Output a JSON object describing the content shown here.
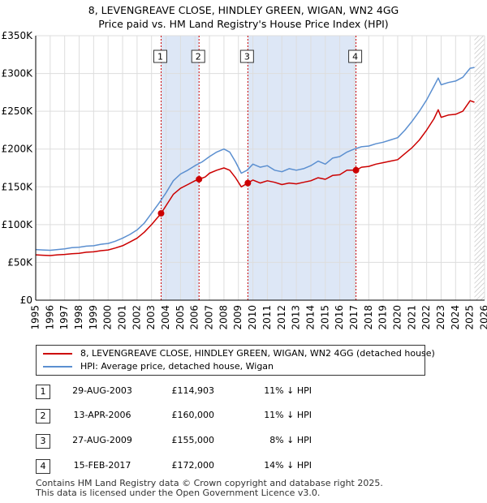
{
  "title": {
    "line1": "8, LEVENGREAVE CLOSE, HINDLEY GREEN, WIGAN, WN2 4GG",
    "line2": "Price paid vs. HM Land Registry's House Price Index (HPI)"
  },
  "colors": {
    "property": "#cc0000",
    "hpi": "#5b8fd0",
    "shade": "#dde7f6",
    "hatch": "#bbbbbb",
    "marker_line": "#cc0000",
    "grid": "#dddddd"
  },
  "chart_data": {
    "type": "line",
    "xlim": [
      1995,
      2026
    ],
    "ylim": [
      0,
      350000
    ],
    "y_ticks": [
      0,
      50000,
      100000,
      150000,
      200000,
      250000,
      300000,
      350000
    ],
    "y_tick_labels": [
      "£0",
      "£50K",
      "£100K",
      "£150K",
      "£200K",
      "£250K",
      "£300K",
      "£350K"
    ],
    "x_ticks": [
      1995,
      1996,
      1997,
      1998,
      1999,
      2000,
      2001,
      2002,
      2003,
      2004,
      2005,
      2006,
      2007,
      2008,
      2009,
      2010,
      2011,
      2012,
      2013,
      2014,
      2015,
      2016,
      2017,
      2018,
      2019,
      2020,
      2021,
      2022,
      2023,
      2024,
      2025,
      2026
    ],
    "x_tick_labels": [
      "1995",
      "1996",
      "1997",
      "1998",
      "1999",
      "2000",
      "2001",
      "2002",
      "2003",
      "2004",
      "2005",
      "2006",
      "2007",
      "2008",
      "2009",
      "2010",
      "2011",
      "2012",
      "2013",
      "2014",
      "2015",
      "2016",
      "2017",
      "2018",
      "2019",
      "2020",
      "2021",
      "2022",
      "2023",
      "2024",
      "2025",
      "2026"
    ],
    "series": [
      {
        "name": "8, LEVENGREAVE CLOSE, HINDLEY GREEN, WIGAN, WN2 4GG (detached house)",
        "points": [
          [
            1995.0,
            60000
          ],
          [
            1995.5,
            59500
          ],
          [
            1996.0,
            59000
          ],
          [
            1996.5,
            60000
          ],
          [
            1997.0,
            60500
          ],
          [
            1997.5,
            61500
          ],
          [
            1998.0,
            62000
          ],
          [
            1998.5,
            63500
          ],
          [
            1999.0,
            64000
          ],
          [
            1999.5,
            65500
          ],
          [
            2000.0,
            66500
          ],
          [
            2000.5,
            69000
          ],
          [
            2001.0,
            72000
          ],
          [
            2001.5,
            77000
          ],
          [
            2002.0,
            82000
          ],
          [
            2002.5,
            90000
          ],
          [
            2003.0,
            100000
          ],
          [
            2003.66,
            114903
          ],
          [
            2004.0,
            125000
          ],
          [
            2004.5,
            140000
          ],
          [
            2005.0,
            148000
          ],
          [
            2005.5,
            153000
          ],
          [
            2006.0,
            158000
          ],
          [
            2006.28,
            160000
          ],
          [
            2006.7,
            163000
          ],
          [
            2007.0,
            168000
          ],
          [
            2007.5,
            172000
          ],
          [
            2008.0,
            175000
          ],
          [
            2008.4,
            172000
          ],
          [
            2008.8,
            162000
          ],
          [
            2009.2,
            150000
          ],
          [
            2009.65,
            155000
          ],
          [
            2010.0,
            159000
          ],
          [
            2010.5,
            155000
          ],
          [
            2011.0,
            158000
          ],
          [
            2011.5,
            156000
          ],
          [
            2012.0,
            153000
          ],
          [
            2012.5,
            155000
          ],
          [
            2013.0,
            154000
          ],
          [
            2013.5,
            156000
          ],
          [
            2014.0,
            158000
          ],
          [
            2014.5,
            162000
          ],
          [
            2015.0,
            160000
          ],
          [
            2015.5,
            165000
          ],
          [
            2016.0,
            166000
          ],
          [
            2016.5,
            172000
          ],
          [
            2017.12,
            172000
          ],
          [
            2017.5,
            176000
          ],
          [
            2018.0,
            177000
          ],
          [
            2018.5,
            180000
          ],
          [
            2019.0,
            182000
          ],
          [
            2019.5,
            184000
          ],
          [
            2020.0,
            186000
          ],
          [
            2020.5,
            194000
          ],
          [
            2021.0,
            202000
          ],
          [
            2021.5,
            212000
          ],
          [
            2022.0,
            225000
          ],
          [
            2022.5,
            240000
          ],
          [
            2022.8,
            252000
          ],
          [
            2023.0,
            242000
          ],
          [
            2023.5,
            245000
          ],
          [
            2024.0,
            246000
          ],
          [
            2024.5,
            250000
          ],
          [
            2025.0,
            264000
          ],
          [
            2025.3,
            262000
          ]
        ]
      },
      {
        "name": "HPI: Average price, detached house, Wigan",
        "points": [
          [
            1995.0,
            67000
          ],
          [
            1995.5,
            66500
          ],
          [
            1996.0,
            66000
          ],
          [
            1996.5,
            67000
          ],
          [
            1997.0,
            68000
          ],
          [
            1997.5,
            69500
          ],
          [
            1998.0,
            70000
          ],
          [
            1998.5,
            71500
          ],
          [
            1999.0,
            72000
          ],
          [
            1999.5,
            74000
          ],
          [
            2000.0,
            75000
          ],
          [
            2000.5,
            78000
          ],
          [
            2001.0,
            82000
          ],
          [
            2001.5,
            87000
          ],
          [
            2002.0,
            93000
          ],
          [
            2002.5,
            102000
          ],
          [
            2003.0,
            115000
          ],
          [
            2003.5,
            128000
          ],
          [
            2004.0,
            142000
          ],
          [
            2004.5,
            158000
          ],
          [
            2005.0,
            167000
          ],
          [
            2005.5,
            172000
          ],
          [
            2006.0,
            178000
          ],
          [
            2006.5,
            183000
          ],
          [
            2007.0,
            190000
          ],
          [
            2007.5,
            196000
          ],
          [
            2008.0,
            200000
          ],
          [
            2008.4,
            196000
          ],
          [
            2008.8,
            183000
          ],
          [
            2009.2,
            168000
          ],
          [
            2009.6,
            172000
          ],
          [
            2010.0,
            180000
          ],
          [
            2010.5,
            176000
          ],
          [
            2011.0,
            178000
          ],
          [
            2011.5,
            172000
          ],
          [
            2012.0,
            170000
          ],
          [
            2012.5,
            174000
          ],
          [
            2013.0,
            172000
          ],
          [
            2013.5,
            174000
          ],
          [
            2014.0,
            178000
          ],
          [
            2014.5,
            184000
          ],
          [
            2015.0,
            180000
          ],
          [
            2015.5,
            188000
          ],
          [
            2016.0,
            190000
          ],
          [
            2016.5,
            196000
          ],
          [
            2017.0,
            200000
          ],
          [
            2017.5,
            203000
          ],
          [
            2018.0,
            204000
          ],
          [
            2018.5,
            207000
          ],
          [
            2019.0,
            209000
          ],
          [
            2019.5,
            212000
          ],
          [
            2020.0,
            215000
          ],
          [
            2020.5,
            225000
          ],
          [
            2021.0,
            237000
          ],
          [
            2021.5,
            250000
          ],
          [
            2022.0,
            265000
          ],
          [
            2022.5,
            283000
          ],
          [
            2022.8,
            294000
          ],
          [
            2023.0,
            285000
          ],
          [
            2023.5,
            288000
          ],
          [
            2024.0,
            290000
          ],
          [
            2024.5,
            295000
          ],
          [
            2025.0,
            307000
          ],
          [
            2025.3,
            308000
          ]
        ]
      }
    ],
    "transactions": [
      {
        "label": "1",
        "x": 2003.66,
        "price": 114903
      },
      {
        "label": "2",
        "x": 2006.28,
        "price": 160000
      },
      {
        "label": "3",
        "x": 2009.65,
        "price": 155000
      },
      {
        "label": "4",
        "x": 2017.12,
        "price": 172000
      }
    ],
    "shaded_spans": [
      [
        2003.66,
        2006.28
      ],
      [
        2009.65,
        2017.12
      ]
    ],
    "forecast_start": 2025.3
  },
  "legend": {
    "property": "8, LEVENGREAVE CLOSE, HINDLEY GREEN, WIGAN, WN2 4GG (detached house)",
    "hpi": "HPI: Average price, detached house, Wigan"
  },
  "table": {
    "rows": [
      {
        "num": "1",
        "date": "29-AUG-2003",
        "price": "£114,903",
        "hpi": "11% ↓ HPI"
      },
      {
        "num": "2",
        "date": "13-APR-2006",
        "price": "£160,000",
        "hpi": "11% ↓ HPI"
      },
      {
        "num": "3",
        "date": "27-AUG-2009",
        "price": "£155,000",
        "hpi": "8% ↓ HPI"
      },
      {
        "num": "4",
        "date": "15-FEB-2017",
        "price": "£172,000",
        "hpi": "14% ↓ HPI"
      }
    ]
  },
  "footer": {
    "line1": "Contains HM Land Registry data © Crown copyright and database right 2025.",
    "line2": "This data is licensed under the Open Government Licence v3.0."
  }
}
